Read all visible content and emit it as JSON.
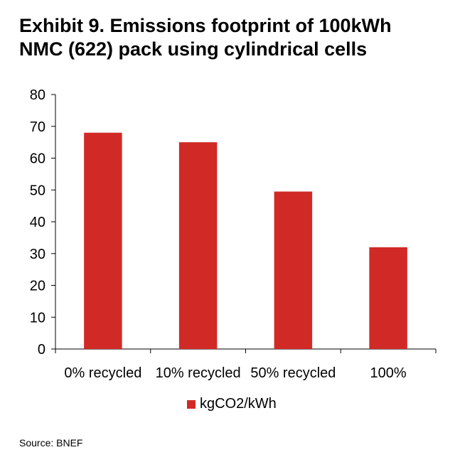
{
  "title_lines": [
    "Exhibit 9. Emissions footprint of 100kWh",
    "NMC (622) pack using cylindrical cells"
  ],
  "source": "Source: BNEF",
  "colors": {
    "bar": "#d12a26",
    "axis": "#000000"
  },
  "chart_data": {
    "type": "bar",
    "categories": [
      "0% recycled",
      "10% recycled",
      "50% recycled",
      "100%"
    ],
    "series": [
      {
        "name": "kgCO2/kWh",
        "values": [
          68,
          65,
          49.5,
          32
        ]
      }
    ],
    "ylim": [
      0,
      80
    ],
    "yticks": [
      0,
      10,
      20,
      30,
      40,
      50,
      60,
      70,
      80
    ],
    "grid": false,
    "legend_position": "bottom"
  }
}
